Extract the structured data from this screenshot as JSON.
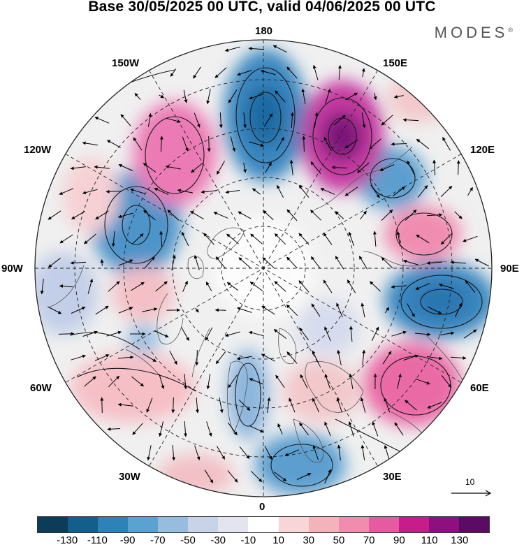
{
  "title": "Base 30/05/2025 00 UTC, valid 04/06/2025 00 UTC",
  "brand": {
    "name": "MODES",
    "mark": "®"
  },
  "longitude_labels": {
    "north": "180",
    "e150": "150E",
    "e120": "120E",
    "e90": "90E",
    "e60": "60E",
    "e30": "30E",
    "south": "0",
    "w30": "30W",
    "w60": "60W",
    "w90": "90W",
    "w120": "120W",
    "w150": "150W"
  },
  "reference_vector": {
    "value": "10"
  },
  "colorbar": {
    "colors": [
      "#0d3b5a",
      "#135f8c",
      "#2b83ba",
      "#5aa2cf",
      "#96bde0",
      "#c8d3ea",
      "#e4e4f1",
      "#ffffff",
      "#f8d6d7",
      "#f4b3bb",
      "#f08cad",
      "#e55aa0",
      "#c81c8a",
      "#8e0f7f",
      "#5b0b63"
    ],
    "ticks": [
      "-130",
      "-110",
      "-90",
      "-70",
      "-50",
      "-30",
      "-10",
      "10",
      "30",
      "50",
      "70",
      "90",
      "110",
      "130"
    ]
  },
  "anomalies": [
    {
      "sign": "neg",
      "strength": 3,
      "label": "blue-low-north"
    },
    {
      "sign": "pos",
      "strength": 4,
      "label": "magenta-high-150e"
    },
    {
      "sign": "neg",
      "strength": 2,
      "label": "blue-low-120e"
    },
    {
      "sign": "pos",
      "strength": 2,
      "label": "pink-high-105e"
    },
    {
      "sign": "neg",
      "strength": 3,
      "label": "blue-low-80e"
    },
    {
      "sign": "pos",
      "strength": 2,
      "label": "pink-high-60e"
    },
    {
      "sign": "neg",
      "strength": 2,
      "label": "blue-low-20e"
    },
    {
      "sign": "neg",
      "strength": 2,
      "label": "blue-low-0"
    },
    {
      "sign": "pos",
      "strength": 1,
      "label": "pink-high-45w"
    },
    {
      "sign": "neg",
      "strength": 2,
      "label": "blue-low-115w"
    },
    {
      "sign": "pos",
      "strength": 3,
      "label": "pink-high-140w"
    },
    {
      "sign": "neg",
      "strength": 1,
      "label": "blue-low-90w"
    }
  ]
}
